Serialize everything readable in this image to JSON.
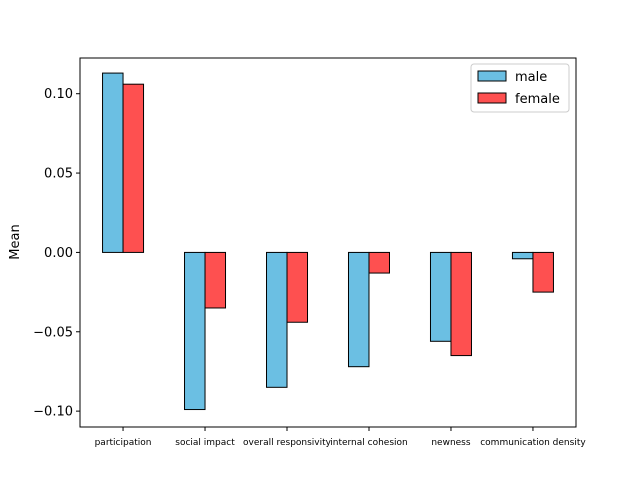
{
  "chart_data": {
    "type": "bar",
    "title": "",
    "xlabel": "",
    "ylabel": "Mean",
    "ylim": [
      -0.11,
      0.1225
    ],
    "yticks": [
      -0.1,
      -0.05,
      0.0,
      0.05,
      0.1
    ],
    "ytick_labels": [
      "−0.10",
      "−0.05",
      "0.00",
      "0.05",
      "0.10"
    ],
    "categories": [
      "participation",
      "social impact",
      "overall responsivity",
      "internal cohesion",
      "newness",
      "communication density"
    ],
    "series": [
      {
        "name": "male",
        "color": "#6bbfe3",
        "values": [
          0.113,
          -0.099,
          -0.085,
          -0.072,
          -0.056,
          -0.004
        ]
      },
      {
        "name": "female",
        "color": "#fe5050",
        "values": [
          0.106,
          -0.035,
          -0.044,
          -0.013,
          -0.065,
          -0.025
        ]
      }
    ],
    "legend": {
      "position": "top-right"
    },
    "grid": false
  }
}
